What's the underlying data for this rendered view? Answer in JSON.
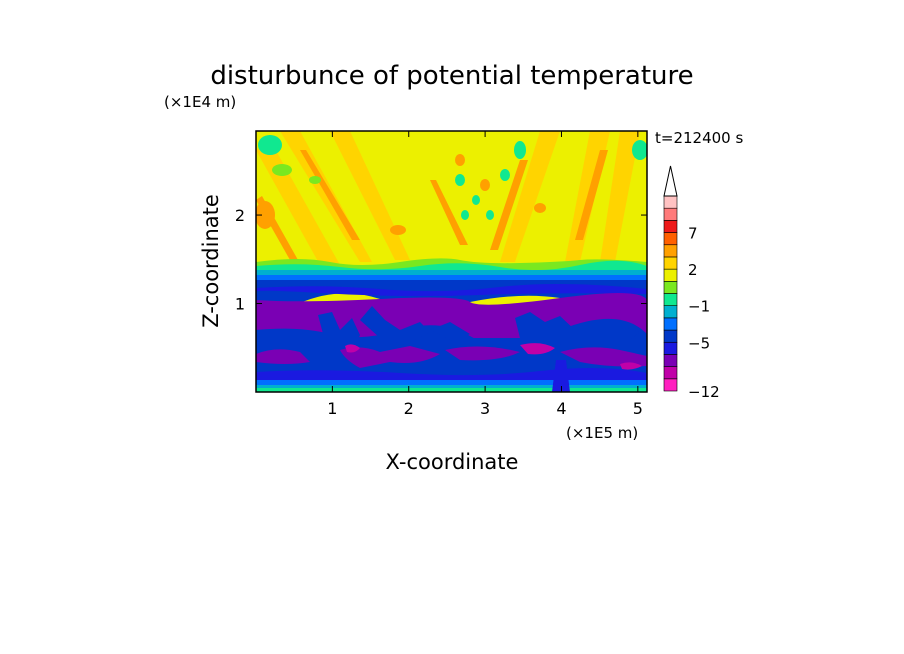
{
  "chart_data": {
    "type": "heatmap",
    "title": "disturbunce of potential temperature",
    "time_label": "t=212400 s",
    "xlabel": "X-coordinate",
    "ylabel": "Z-coordinate",
    "x_scale_note": "(×1E5 m)",
    "y_scale_note": "(×1E4 m)",
    "x_ticks": [
      1,
      2,
      3,
      4,
      5
    ],
    "y_ticks": [
      1,
      2
    ],
    "xlim": [
      0,
      5.12
    ],
    "ylim": [
      0,
      2.95
    ],
    "colorbar": {
      "levels": [
        -12,
        -11,
        -9,
        -7,
        -5,
        -4,
        -3,
        -1,
        0,
        1,
        2,
        3,
        5,
        7,
        9,
        11
      ],
      "tick_labels": [
        "7",
        "2",
        "−1",
        "−5",
        "−12"
      ],
      "tick_values": [
        7,
        2,
        -1,
        -5,
        -12
      ],
      "colors": [
        "#ff1fbf",
        "#c000a8",
        "#7a00b4",
        "#1a1ae0",
        "#0038c8",
        "#0070ff",
        "#00b0d0",
        "#10e890",
        "#7ae820",
        "#ecf000",
        "#ffd400",
        "#ffa000",
        "#ff6000",
        "#ee1a1a",
        "#ff7a7a",
        "#ffc2c2"
      ],
      "extend": "max"
    },
    "layers": [
      {
        "z_from": 0.0,
        "z_to": 0.05,
        "value_range": [
          -1,
          0
        ]
      },
      {
        "z_from": 0.05,
        "z_to": 0.2,
        "value_range": [
          -5,
          -4
        ]
      },
      {
        "z_from": 0.2,
        "z_to": 0.7,
        "value_range": [
          -7,
          -5
        ]
      },
      {
        "z_from": 0.7,
        "z_to": 1.05,
        "value_range": [
          -9,
          -7
        ]
      },
      {
        "z_from": 1.05,
        "z_to": 1.3,
        "value_range": [
          -5,
          -3
        ]
      },
      {
        "z_from": 1.3,
        "z_to": 1.45,
        "value_range": [
          -1,
          2
        ]
      },
      {
        "z_from": 1.45,
        "z_to": 2.95,
        "value_range": [
          2,
          5
        ]
      }
    ]
  }
}
